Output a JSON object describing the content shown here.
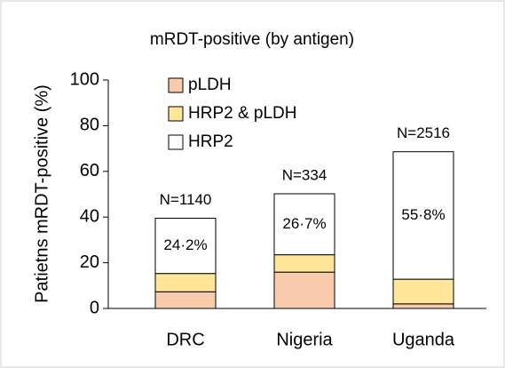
{
  "chart_data": {
    "type": "stacked-bar",
    "title": "mRDT-positive (by antigen)",
    "ylabel": "Patietns mRDT-positive (%)",
    "categories": [
      "DRC",
      "Nigeria",
      "Uganda"
    ],
    "series": [
      {
        "name": "pLDH",
        "color": "#f8cbad",
        "values": [
          7.3,
          15.9,
          2
        ]
      },
      {
        "name": "HRP2 & pLDH",
        "color": "#ffe699",
        "values": [
          8.0,
          7.6,
          10.8
        ]
      },
      {
        "name": "HRP2",
        "color": "#ffffff",
        "values": [
          24.2,
          26.7,
          55.8
        ],
        "value_labels": [
          "24·2%",
          "26·7%",
          "55·8%"
        ]
      }
    ],
    "annotations": [
      "N=1140",
      "N=334",
      "N=2516"
    ],
    "ylim": [
      0,
      100
    ],
    "yticks": [
      0,
      20,
      40,
      60,
      80,
      100
    ],
    "legend": "top-left"
  }
}
